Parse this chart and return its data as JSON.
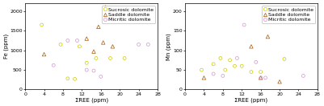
{
  "left_chart": {
    "xlabel": "ΣREE (ppm)",
    "ylabel": "Fe (ppm)",
    "xlim": [
      0,
      28
    ],
    "ylim": [
      0,
      2200
    ],
    "xticks": [
      0,
      4,
      8,
      12,
      16,
      20,
      24,
      28
    ],
    "yticks": [
      0,
      500,
      1000,
      1500,
      2000
    ],
    "sucrosic": {
      "x": [
        3.5,
        7.5,
        9,
        10.5,
        11.5,
        13,
        15,
        18,
        21
      ],
      "y": [
        1650,
        1150,
        280,
        270,
        1100,
        680,
        800,
        800,
        800
      ]
    },
    "saddle": {
      "x": [
        4,
        13,
        14.5,
        15.5,
        16.5,
        18.5,
        17
      ],
      "y": [
        900,
        1300,
        970,
        1600,
        1200,
        1100,
        2100
      ]
    },
    "micritic": {
      "x": [
        6,
        9,
        11,
        13,
        14.5,
        16,
        24,
        26
      ],
      "y": [
        620,
        1250,
        1250,
        500,
        480,
        330,
        1150,
        1150
      ]
    }
  },
  "right_chart": {
    "xlabel": "ΣREE (ppm)",
    "ylabel": "Mn (ppm)",
    "xlim": [
      0,
      28
    ],
    "ylim": [
      0,
      220
    ],
    "xticks": [
      0,
      4,
      8,
      12,
      16,
      20,
      24,
      28
    ],
    "yticks": [
      0,
      50,
      100,
      150,
      200
    ],
    "sucrosic": {
      "x": [
        3.5,
        6,
        7.5,
        8.5,
        9.5,
        10.5,
        12,
        14,
        16,
        21
      ],
      "y": [
        50,
        65,
        80,
        50,
        75,
        60,
        60,
        45,
        45,
        78
      ]
    },
    "saddle": {
      "x": [
        4,
        14,
        16,
        17.5,
        20
      ],
      "y": [
        30,
        110,
        30,
        135,
        20
      ]
    },
    "micritic": {
      "x": [
        6,
        8,
        11,
        12.5,
        15,
        16,
        17,
        25
      ],
      "y": [
        40,
        35,
        80,
        165,
        70,
        30,
        30,
        35
      ]
    }
  },
  "sucrosic_color": "#cccc00",
  "saddle_color": "#aa5500",
  "micritic_color": "#cc99cc",
  "legend_labels": [
    "Sucrosic dolomite",
    "Saddle dolomite",
    "Micritic dolomite"
  ],
  "fontsize": 4.5,
  "tick_fontsize": 4.5,
  "label_fontsize": 5.0,
  "marker_size": 8,
  "legend_markersize": 3.0
}
